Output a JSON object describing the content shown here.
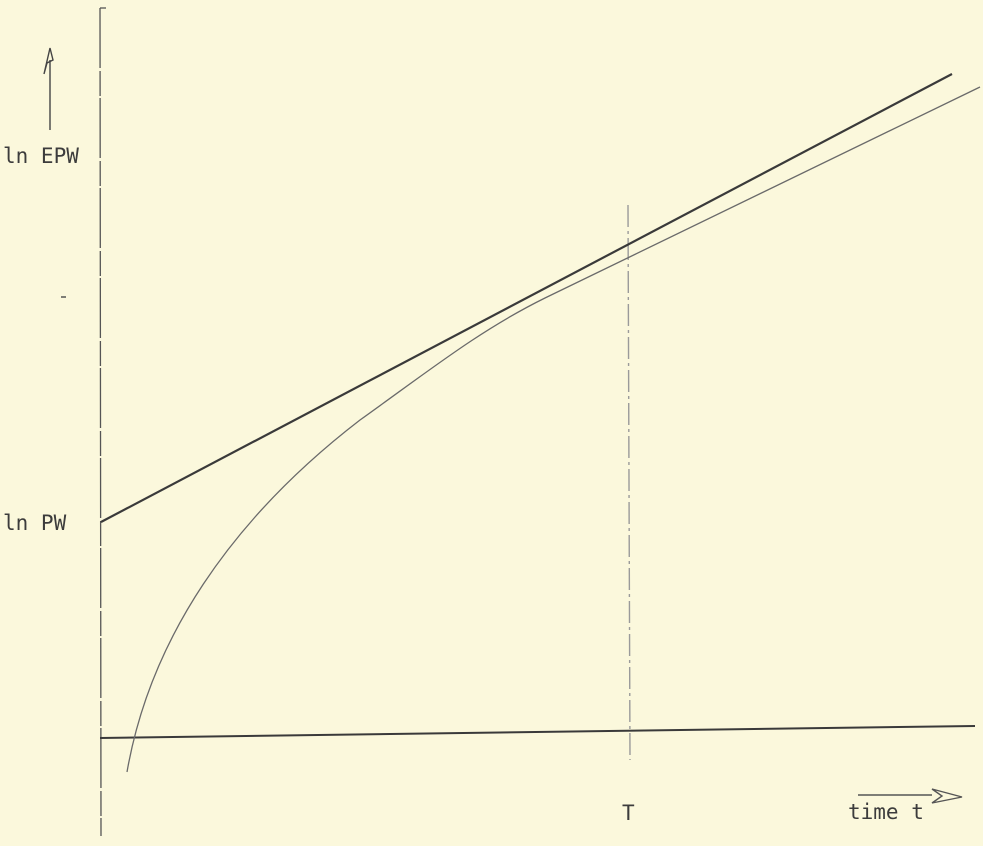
{
  "chart_data": {
    "type": "line",
    "title": "",
    "xlabel": "time t",
    "ylabel": "ln EPW",
    "y_tick_labels": [
      "ln EPW",
      "ln PW"
    ],
    "x_tick_labels": [
      "T"
    ],
    "grid": false,
    "legend": "none",
    "colors": {
      "background": "#fbf8dc",
      "ink": "#3c3c3c",
      "curve": "#6a6a6a"
    }
  }
}
